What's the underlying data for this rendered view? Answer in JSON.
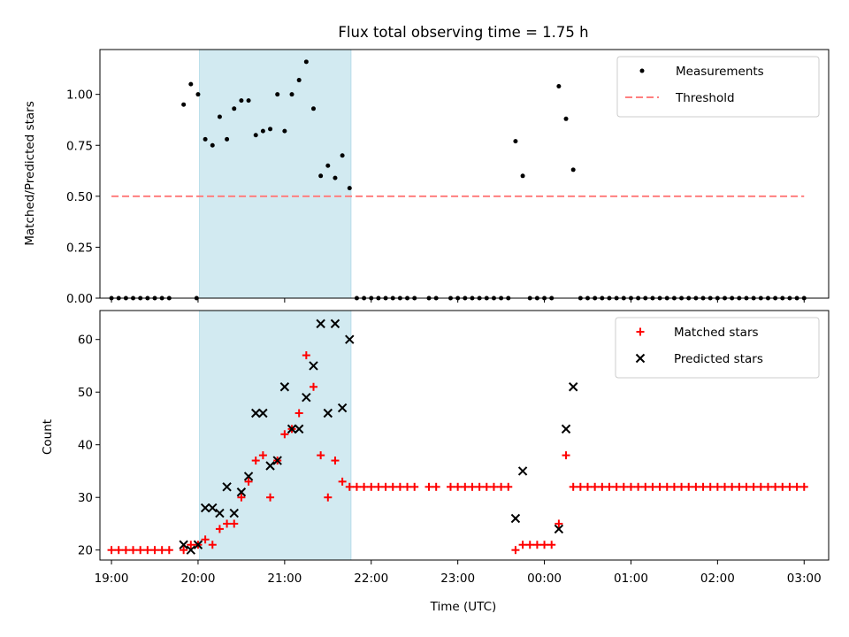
{
  "chart_data": [
    {
      "type": "scatter",
      "title": "Flux total observing time = 1.75 h",
      "xlabel": "",
      "ylabel": "Matched/Predicted stars",
      "xlim": [
        "18:52",
        "03:17"
      ],
      "ylim": [
        0,
        1.22
      ],
      "yticks": [
        "0.00",
        "0.25",
        "0.50",
        "0.75",
        "1.00"
      ],
      "grid": false,
      "legend_position": "top-right",
      "shaded_interval": [
        "20:01",
        "21:46"
      ],
      "colors": {
        "measurements": "#000000",
        "threshold": "#ff7f7f",
        "shade": "#add8e6"
      },
      "series": [
        {
          "name": "Measurements",
          "marker": "dot",
          "points": [
            [
              "19:00",
              0
            ],
            [
              "19:05",
              0
            ],
            [
              "19:10",
              0
            ],
            [
              "19:15",
              0
            ],
            [
              "19:20",
              0
            ],
            [
              "19:25",
              0
            ],
            [
              "19:30",
              0
            ],
            [
              "19:35",
              0
            ],
            [
              "19:40",
              0
            ],
            [
              "19:50",
              0.95
            ],
            [
              "19:55",
              1.05
            ],
            [
              "19:59",
              0
            ],
            [
              "20:00",
              1.0
            ],
            [
              "20:05",
              0.78
            ],
            [
              "20:10",
              0.75
            ],
            [
              "20:15",
              0.89
            ],
            [
              "20:20",
              0.78
            ],
            [
              "20:25",
              0.93
            ],
            [
              "20:30",
              0.97
            ],
            [
              "20:35",
              0.97
            ],
            [
              "20:40",
              0.8
            ],
            [
              "20:45",
              0.82
            ],
            [
              "20:50",
              0.83
            ],
            [
              "20:55",
              1.0
            ],
            [
              "21:00",
              0.82
            ],
            [
              "21:05",
              1.0
            ],
            [
              "21:10",
              1.07
            ],
            [
              "21:15",
              1.16
            ],
            [
              "21:20",
              0.93
            ],
            [
              "21:25",
              0.6
            ],
            [
              "21:30",
              0.65
            ],
            [
              "21:35",
              0.59
            ],
            [
              "21:40",
              0.7
            ],
            [
              "21:45",
              0.54
            ],
            [
              "21:50",
              0
            ],
            [
              "21:55",
              0
            ],
            [
              "22:00",
              0
            ],
            [
              "22:05",
              0
            ],
            [
              "22:10",
              0
            ],
            [
              "22:15",
              0
            ],
            [
              "22:20",
              0
            ],
            [
              "22:25",
              0
            ],
            [
              "22:30",
              0
            ],
            [
              "22:40",
              0
            ],
            [
              "22:45",
              0
            ],
            [
              "22:55",
              0
            ],
            [
              "23:00",
              0
            ],
            [
              "23:05",
              0
            ],
            [
              "23:10",
              0
            ],
            [
              "23:15",
              0
            ],
            [
              "23:20",
              0
            ],
            [
              "23:25",
              0
            ],
            [
              "23:30",
              0
            ],
            [
              "23:35",
              0
            ],
            [
              "23:40",
              0.77
            ],
            [
              "23:45",
              0.6
            ],
            [
              "23:50",
              0
            ],
            [
              "23:55",
              0
            ],
            [
              "24:00",
              0
            ],
            [
              "24:05",
              0
            ],
            [
              "24:10",
              1.04
            ],
            [
              "24:15",
              0.88
            ],
            [
              "24:20",
              0.63
            ],
            [
              "24:25",
              0
            ],
            [
              "24:30",
              0
            ],
            [
              "24:35",
              0
            ],
            [
              "24:40",
              0
            ],
            [
              "24:45",
              0
            ],
            [
              "24:50",
              0
            ],
            [
              "24:55",
              0
            ],
            [
              "25:00",
              0
            ],
            [
              "25:05",
              0
            ],
            [
              "25:10",
              0
            ],
            [
              "25:15",
              0
            ],
            [
              "25:20",
              0
            ],
            [
              "25:25",
              0
            ],
            [
              "25:30",
              0
            ],
            [
              "25:35",
              0
            ],
            [
              "25:40",
              0
            ],
            [
              "25:45",
              0
            ],
            [
              "25:50",
              0
            ],
            [
              "25:55",
              0
            ],
            [
              "26:00",
              0
            ],
            [
              "26:05",
              0
            ],
            [
              "26:10",
              0
            ],
            [
              "26:15",
              0
            ],
            [
              "26:20",
              0
            ],
            [
              "26:25",
              0
            ],
            [
              "26:30",
              0
            ],
            [
              "26:35",
              0
            ],
            [
              "26:40",
              0
            ],
            [
              "26:45",
              0
            ],
            [
              "26:50",
              0
            ],
            [
              "26:55",
              0
            ],
            [
              "27:00",
              0
            ]
          ]
        },
        {
          "name": "Threshold",
          "style": "dashed",
          "points": [
            [
              "19:00",
              0.5
            ],
            [
              "27:00",
              0.5
            ]
          ]
        }
      ]
    },
    {
      "type": "scatter",
      "title": "",
      "xlabel": "Time (UTC)",
      "ylabel": "Count",
      "xlim": [
        "18:52",
        "03:17"
      ],
      "ylim": [
        18.1,
        65.5
      ],
      "yticks": [
        "20",
        "30",
        "40",
        "50",
        "60"
      ],
      "xticks": [
        "19:00",
        "20:00",
        "21:00",
        "22:00",
        "23:00",
        "00:00",
        "01:00",
        "02:00",
        "03:00"
      ],
      "grid": false,
      "legend_position": "top-right",
      "shaded_interval": [
        "20:01",
        "21:46"
      ],
      "colors": {
        "matched": "#ff0000",
        "predicted": "#000000",
        "shade": "#add8e6"
      },
      "series": [
        {
          "name": "Matched stars",
          "marker": "plus",
          "points": [
            [
              "19:00",
              20
            ],
            [
              "19:05",
              20
            ],
            [
              "19:10",
              20
            ],
            [
              "19:15",
              20
            ],
            [
              "19:20",
              20
            ],
            [
              "19:25",
              20
            ],
            [
              "19:30",
              20
            ],
            [
              "19:35",
              20
            ],
            [
              "19:40",
              20
            ],
            [
              "19:50",
              20
            ],
            [
              "19:55",
              21
            ],
            [
              "20:00",
              21
            ],
            [
              "20:05",
              22
            ],
            [
              "20:10",
              21
            ],
            [
              "20:15",
              24
            ],
            [
              "20:20",
              25
            ],
            [
              "20:25",
              25
            ],
            [
              "20:30",
              30
            ],
            [
              "20:35",
              33
            ],
            [
              "20:40",
              37
            ],
            [
              "20:45",
              38
            ],
            [
              "20:50",
              30
            ],
            [
              "20:55",
              37
            ],
            [
              "21:00",
              42
            ],
            [
              "21:05",
              43
            ],
            [
              "21:10",
              46
            ],
            [
              "21:15",
              57
            ],
            [
              "21:20",
              51
            ],
            [
              "21:25",
              38
            ],
            [
              "21:30",
              30
            ],
            [
              "21:35",
              37
            ],
            [
              "21:40",
              33
            ],
            [
              "21:45",
              32
            ],
            [
              "21:50",
              32
            ],
            [
              "21:55",
              32
            ],
            [
              "22:00",
              32
            ],
            [
              "22:05",
              32
            ],
            [
              "22:10",
              32
            ],
            [
              "22:15",
              32
            ],
            [
              "22:20",
              32
            ],
            [
              "22:25",
              32
            ],
            [
              "22:30",
              32
            ],
            [
              "22:40",
              32
            ],
            [
              "22:45",
              32
            ],
            [
              "22:55",
              32
            ],
            [
              "23:00",
              32
            ],
            [
              "23:05",
              32
            ],
            [
              "23:10",
              32
            ],
            [
              "23:15",
              32
            ],
            [
              "23:20",
              32
            ],
            [
              "23:25",
              32
            ],
            [
              "23:30",
              32
            ],
            [
              "23:35",
              32
            ],
            [
              "23:40",
              20
            ],
            [
              "23:45",
              21
            ],
            [
              "23:50",
              21
            ],
            [
              "23:55",
              21
            ],
            [
              "24:00",
              21
            ],
            [
              "24:05",
              21
            ],
            [
              "24:10",
              25
            ],
            [
              "24:15",
              38
            ],
            [
              "24:20",
              32
            ],
            [
              "24:25",
              32
            ],
            [
              "24:30",
              32
            ],
            [
              "24:35",
              32
            ],
            [
              "24:40",
              32
            ],
            [
              "24:45",
              32
            ],
            [
              "24:50",
              32
            ],
            [
              "24:55",
              32
            ],
            [
              "25:00",
              32
            ],
            [
              "25:05",
              32
            ],
            [
              "25:10",
              32
            ],
            [
              "25:15",
              32
            ],
            [
              "25:20",
              32
            ],
            [
              "25:25",
              32
            ],
            [
              "25:30",
              32
            ],
            [
              "25:35",
              32
            ],
            [
              "25:40",
              32
            ],
            [
              "25:45",
              32
            ],
            [
              "25:50",
              32
            ],
            [
              "25:55",
              32
            ],
            [
              "26:00",
              32
            ],
            [
              "26:05",
              32
            ],
            [
              "26:10",
              32
            ],
            [
              "26:15",
              32
            ],
            [
              "26:20",
              32
            ],
            [
              "26:25",
              32
            ],
            [
              "26:30",
              32
            ],
            [
              "26:35",
              32
            ],
            [
              "26:40",
              32
            ],
            [
              "26:45",
              32
            ],
            [
              "26:50",
              32
            ],
            [
              "26:55",
              32
            ],
            [
              "27:00",
              32
            ]
          ]
        },
        {
          "name": "Predicted stars",
          "marker": "x",
          "points": [
            [
              "19:50",
              21
            ],
            [
              "19:55",
              20
            ],
            [
              "20:00",
              21
            ],
            [
              "20:05",
              28
            ],
            [
              "20:10",
              28
            ],
            [
              "20:15",
              27
            ],
            [
              "20:20",
              32
            ],
            [
              "20:25",
              27
            ],
            [
              "20:30",
              31
            ],
            [
              "20:35",
              34
            ],
            [
              "20:40",
              46
            ],
            [
              "20:45",
              46
            ],
            [
              "20:50",
              36
            ],
            [
              "20:55",
              37
            ],
            [
              "21:00",
              51
            ],
            [
              "21:05",
              43
            ],
            [
              "21:10",
              43
            ],
            [
              "21:15",
              49
            ],
            [
              "21:20",
              55
            ],
            [
              "21:25",
              63
            ],
            [
              "21:30",
              46
            ],
            [
              "21:35",
              63
            ],
            [
              "21:40",
              47
            ],
            [
              "21:45",
              60
            ],
            [
              "23:40",
              26
            ],
            [
              "23:45",
              35
            ],
            [
              "24:10",
              24
            ],
            [
              "24:15",
              43
            ],
            [
              "24:20",
              51
            ]
          ]
        }
      ]
    }
  ]
}
